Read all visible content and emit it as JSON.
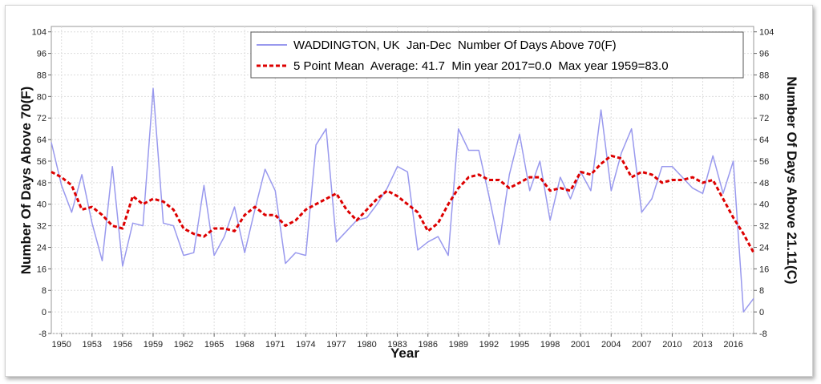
{
  "chart_data": {
    "type": "line",
    "xlabel": "Year",
    "ylabel_left": "Number Of Days Above 70(F)",
    "ylabel_right": "Number Of Days Above 21.11(C)",
    "xlim": [
      1949,
      2018
    ],
    "ylim": [
      -8,
      106
    ],
    "y_ticks": [
      -8,
      0,
      8,
      16,
      24,
      32,
      40,
      48,
      56,
      64,
      72,
      80,
      88,
      96,
      104
    ],
    "x_ticks": [
      1950,
      1953,
      1956,
      1959,
      1962,
      1965,
      1968,
      1971,
      1974,
      1977,
      1980,
      1983,
      1986,
      1989,
      1992,
      1995,
      1998,
      2001,
      2004,
      2007,
      2010,
      2013,
      2016
    ],
    "grid": true,
    "legend": "top-right",
    "series": [
      {
        "name": "WADDINGTON, UK  Jan-Dec  Number Of Days Above 70(F)",
        "color": "#9999ee",
        "style": "solid",
        "x": [
          1949,
          1950,
          1951,
          1952,
          1953,
          1954,
          1955,
          1956,
          1957,
          1958,
          1959,
          1960,
          1961,
          1962,
          1963,
          1964,
          1965,
          1966,
          1967,
          1968,
          1969,
          1970,
          1971,
          1972,
          1973,
          1974,
          1975,
          1976,
          1977,
          1978,
          1979,
          1980,
          1981,
          1982,
          1983,
          1984,
          1985,
          1986,
          1987,
          1988,
          1989,
          1990,
          1991,
          1992,
          1993,
          1994,
          1995,
          1996,
          1997,
          1998,
          1999,
          2000,
          2001,
          2002,
          2003,
          2004,
          2005,
          2006,
          2007,
          2008,
          2009,
          2010,
          2011,
          2012,
          2013,
          2014,
          2015,
          2016,
          2017,
          2018
        ],
        "values": [
          63,
          47,
          37,
          51,
          33,
          19,
          54,
          17,
          33,
          32,
          83,
          33,
          32,
          21,
          22,
          47,
          21,
          28,
          39,
          22,
          38,
          53,
          45,
          18,
          22,
          21,
          62,
          68,
          26,
          30,
          34,
          35,
          40,
          46,
          54,
          52,
          23,
          26,
          28,
          21,
          68,
          60,
          60,
          43,
          25,
          51,
          66,
          45,
          56,
          34,
          50,
          42,
          52,
          45,
          75,
          45,
          59,
          68,
          37,
          42,
          54,
          54,
          50,
          46,
          44,
          58,
          44,
          56,
          0,
          5
        ]
      },
      {
        "name": "5 Point Mean  Average: 41.7  Min year 2017=0.0  Max year 1959=83.0",
        "color": "#dd0000",
        "style": "dashed",
        "x": [
          1949,
          1950,
          1951,
          1952,
          1953,
          1954,
          1955,
          1956,
          1957,
          1958,
          1959,
          1960,
          1961,
          1962,
          1963,
          1964,
          1965,
          1966,
          1967,
          1968,
          1969,
          1970,
          1971,
          1972,
          1973,
          1974,
          1975,
          1976,
          1977,
          1978,
          1979,
          1980,
          1981,
          1982,
          1983,
          1984,
          1985,
          1986,
          1987,
          1988,
          1989,
          1990,
          1991,
          1992,
          1993,
          1994,
          1995,
          1996,
          1997,
          1998,
          1999,
          2000,
          2001,
          2002,
          2003,
          2004,
          2005,
          2006,
          2007,
          2008,
          2009,
          2010,
          2011,
          2012,
          2013,
          2014,
          2015,
          2016,
          2017,
          2018
        ],
        "values": [
          52,
          50,
          47,
          38,
          39,
          36,
          32,
          31,
          43,
          40,
          42,
          41,
          38,
          31,
          29,
          28,
          31,
          31,
          30,
          36,
          39,
          36,
          36,
          32,
          34,
          38,
          40,
          42,
          44,
          38,
          34,
          38,
          42,
          45,
          43,
          40,
          37,
          30,
          33,
          40,
          46,
          50,
          51,
          49,
          49,
          46,
          48,
          50,
          50,
          45,
          46,
          45,
          52,
          51,
          55,
          58,
          57,
          50,
          52,
          51,
          48,
          49,
          49,
          50,
          48,
          49,
          42,
          35,
          29,
          22
        ]
      }
    ]
  }
}
